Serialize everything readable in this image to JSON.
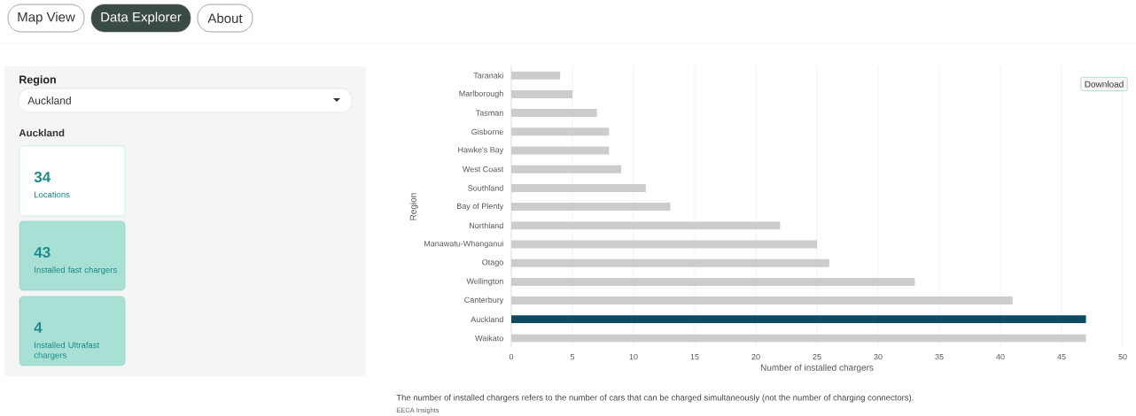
{
  "chart_data": [
    {
      "type": "other",
      "annotations": [
        "Map View",
        "Data Explorer",
        "About",
        "Region",
        "Auckland",
        "Auckland",
        "34",
        "Locations",
        "43",
        "Installed fast chargers",
        "4",
        "Installed Ultrafast chargers"
      ]
    },
    {
      "type": "bar",
      "orientation": "horizontal",
      "xlabel": "Number of installed chargers",
      "ylabel": "Region",
      "categories": [
        "Taranaki",
        "Marlborough",
        "Tasman",
        "Gisborne",
        "Hawke's Bay",
        "West Coast",
        "Southland",
        "Bay of Plenty",
        "Northland",
        "Manawatu-Whanganui",
        "Otago",
        "Wellington",
        "Canterbury",
        "Auckland",
        "Waikato"
      ],
      "values": [
        4,
        5,
        7,
        8,
        8,
        9,
        11,
        13,
        22,
        25,
        26,
        33,
        41,
        47,
        47
      ],
      "colors": [
        "#cccccc",
        "#cccccc",
        "#cccccc",
        "#cccccc",
        "#cccccc",
        "#cccccc",
        "#cccccc",
        "#cccccc",
        "#cccccc",
        "#cccccc",
        "#cccccc",
        "#cccccc",
        "#cccccc",
        "#0f4a63",
        "#cccccc"
      ],
      "xlim": [
        0,
        50
      ],
      "xticks": [
        0,
        5,
        10,
        15,
        20,
        25,
        30,
        35,
        40,
        45,
        50
      ],
      "grid": "x",
      "annotations": [
        "Download",
        "The number of installed chargers refers to the number of cars that can be charged simultaneously (not the number of charging connectors).",
        "EECA Insights"
      ]
    }
  ]
}
